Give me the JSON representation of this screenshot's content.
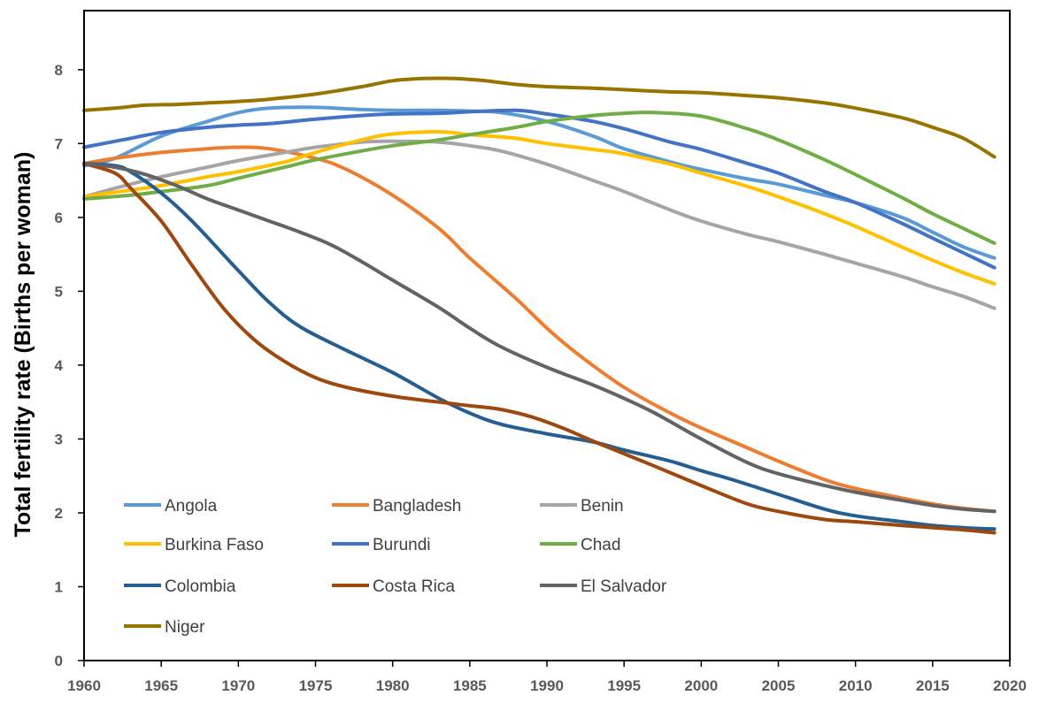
{
  "chart_data": {
    "type": "line",
    "title": "",
    "xlabel": "",
    "ylabel": "Total fertility rate (Births per woman)",
    "xlim": [
      1960,
      2020
    ],
    "ylim": [
      0,
      8.8
    ],
    "x_ticks": [
      1960,
      1965,
      1970,
      1975,
      1980,
      1985,
      1990,
      1995,
      2000,
      2005,
      2010,
      2015,
      2020
    ],
    "y_ticks": [
      0,
      1,
      2,
      3,
      4,
      5,
      6,
      7,
      8
    ],
    "grid": false,
    "legend": "bottom-left, inside plot, 3 columns",
    "series": [
      {
        "name": "Angola",
        "color": "#5B9BD5",
        "x": [
          1960,
          1962,
          1965,
          1968,
          1970,
          1972,
          1975,
          1978,
          1980,
          1983,
          1985,
          1987,
          1990,
          1993,
          1995,
          1998,
          2000,
          2003,
          2005,
          2008,
          2010,
          2013,
          2015,
          2017,
          2019
        ],
        "y": [
          6.7,
          6.8,
          7.1,
          7.3,
          7.42,
          7.48,
          7.49,
          7.46,
          7.45,
          7.45,
          7.44,
          7.42,
          7.3,
          7.1,
          6.93,
          6.75,
          6.65,
          6.52,
          6.45,
          6.3,
          6.2,
          6.0,
          5.8,
          5.6,
          5.45
        ]
      },
      {
        "name": "Bangladesh",
        "color": "#ED7D31",
        "x": [
          1960,
          1962,
          1965,
          1968,
          1970,
          1972,
          1975,
          1977,
          1980,
          1983,
          1985,
          1988,
          1990,
          1992,
          1995,
          1998,
          2000,
          2003,
          2005,
          2008,
          2010,
          2013,
          2015,
          2017,
          2019
        ],
        "y": [
          6.73,
          6.8,
          6.88,
          6.93,
          6.95,
          6.93,
          6.8,
          6.65,
          6.3,
          5.85,
          5.45,
          4.9,
          4.5,
          4.15,
          3.7,
          3.35,
          3.15,
          2.88,
          2.7,
          2.45,
          2.33,
          2.2,
          2.12,
          2.06,
          2.02
        ]
      },
      {
        "name": "Benin",
        "color": "#A5A5A5",
        "x": [
          1960,
          1963,
          1965,
          1968,
          1970,
          1973,
          1975,
          1978,
          1980,
          1983,
          1985,
          1987,
          1990,
          1993,
          1995,
          1998,
          2000,
          2003,
          2005,
          2008,
          2010,
          2013,
          2015,
          2017,
          2019
        ],
        "y": [
          6.28,
          6.45,
          6.55,
          6.68,
          6.77,
          6.88,
          6.95,
          7.02,
          7.03,
          7.02,
          6.97,
          6.9,
          6.72,
          6.5,
          6.35,
          6.1,
          5.95,
          5.77,
          5.67,
          5.5,
          5.38,
          5.2,
          5.06,
          4.93,
          4.77
        ]
      },
      {
        "name": "Burkina Faso",
        "color": "#FFC000",
        "x": [
          1960,
          1963,
          1965,
          1968,
          1970,
          1973,
          1975,
          1978,
          1980,
          1983,
          1985,
          1988,
          1990,
          1993,
          1995,
          1998,
          2000,
          2003,
          2005,
          2008,
          2010,
          2013,
          2015,
          2017,
          2019
        ],
        "y": [
          6.28,
          6.37,
          6.43,
          6.55,
          6.62,
          6.75,
          6.88,
          7.05,
          7.13,
          7.16,
          7.12,
          7.07,
          7.0,
          6.92,
          6.86,
          6.72,
          6.6,
          6.42,
          6.28,
          6.05,
          5.88,
          5.6,
          5.42,
          5.25,
          5.1
        ]
      },
      {
        "name": "Burundi",
        "color": "#4472C4",
        "x": [
          1960,
          1963,
          1965,
          1968,
          1970,
          1972,
          1975,
          1978,
          1980,
          1983,
          1985,
          1988,
          1990,
          1993,
          1995,
          1998,
          2000,
          2003,
          2005,
          2008,
          2010,
          2013,
          2015,
          2017,
          2019
        ],
        "y": [
          6.95,
          7.07,
          7.15,
          7.22,
          7.25,
          7.27,
          7.33,
          7.38,
          7.4,
          7.41,
          7.43,
          7.45,
          7.4,
          7.3,
          7.2,
          7.02,
          6.92,
          6.73,
          6.6,
          6.35,
          6.2,
          5.92,
          5.72,
          5.52,
          5.32
        ]
      },
      {
        "name": "Chad",
        "color": "#70AD47",
        "x": [
          1960,
          1963,
          1965,
          1968,
          1970,
          1973,
          1975,
          1978,
          1980,
          1983,
          1985,
          1988,
          1990,
          1993,
          1995,
          1997,
          2000,
          2003,
          2005,
          2008,
          2010,
          2013,
          2015,
          2017,
          2019
        ],
        "y": [
          6.25,
          6.3,
          6.35,
          6.43,
          6.53,
          6.68,
          6.78,
          6.9,
          6.97,
          7.05,
          7.12,
          7.22,
          7.3,
          7.38,
          7.41,
          7.42,
          7.37,
          7.2,
          7.05,
          6.78,
          6.58,
          6.27,
          6.05,
          5.85,
          5.65
        ]
      },
      {
        "name": "Colombia",
        "color": "#255E91",
        "x": [
          1960,
          1962,
          1963,
          1965,
          1967,
          1970,
          1972,
          1974,
          1977,
          1980,
          1983,
          1985,
          1987,
          1990,
          1993,
          1995,
          1998,
          2000,
          2002,
          2005,
          2008,
          2010,
          2013,
          2015,
          2017,
          2019
        ],
        "y": [
          6.73,
          6.7,
          6.62,
          6.33,
          5.95,
          5.28,
          4.85,
          4.52,
          4.2,
          3.9,
          3.55,
          3.35,
          3.2,
          3.07,
          2.96,
          2.85,
          2.7,
          2.57,
          2.45,
          2.25,
          2.05,
          1.96,
          1.88,
          1.83,
          1.8,
          1.78
        ]
      },
      {
        "name": "Costa Rica",
        "color": "#9E480E",
        "x": [
          1960,
          1962,
          1963,
          1965,
          1967,
          1969,
          1971,
          1973,
          1975,
          1977,
          1980,
          1983,
          1985,
          1987,
          1989,
          1991,
          1993,
          1995,
          1997,
          2000,
          2003,
          2005,
          2008,
          2010,
          2013,
          2015,
          2017,
          2019
        ],
        "y": [
          6.73,
          6.6,
          6.4,
          5.95,
          5.35,
          4.78,
          4.35,
          4.05,
          3.83,
          3.7,
          3.58,
          3.5,
          3.45,
          3.4,
          3.3,
          3.15,
          2.97,
          2.8,
          2.63,
          2.37,
          2.12,
          2.02,
          1.91,
          1.88,
          1.83,
          1.8,
          1.77,
          1.73
        ]
      },
      {
        "name": "El Salvador",
        "color": "#636363",
        "x": [
          1960,
          1962,
          1964,
          1966,
          1968,
          1970,
          1972,
          1974,
          1976,
          1978,
          1980,
          1983,
          1985,
          1987,
          1990,
          1993,
          1995,
          1997,
          2000,
          2003,
          2005,
          2008,
          2010,
          2013,
          2015,
          2017,
          2019
        ],
        "y": [
          6.73,
          6.68,
          6.58,
          6.43,
          6.25,
          6.1,
          5.95,
          5.8,
          5.63,
          5.4,
          5.15,
          4.78,
          4.5,
          4.25,
          3.97,
          3.73,
          3.55,
          3.35,
          3.0,
          2.68,
          2.53,
          2.37,
          2.28,
          2.17,
          2.1,
          2.05,
          2.02
        ]
      },
      {
        "name": "Niger",
        "color": "#997300",
        "x": [
          1960,
          1962,
          1964,
          1966,
          1968,
          1970,
          1972,
          1975,
          1978,
          1980,
          1982,
          1984,
          1986,
          1988,
          1990,
          1993,
          1995,
          1998,
          2000,
          2003,
          2005,
          2008,
          2010,
          2013,
          2015,
          2017,
          2019
        ],
        "y": [
          7.45,
          7.48,
          7.52,
          7.53,
          7.55,
          7.57,
          7.6,
          7.67,
          7.77,
          7.85,
          7.88,
          7.88,
          7.85,
          7.8,
          7.77,
          7.75,
          7.73,
          7.7,
          7.69,
          7.65,
          7.62,
          7.55,
          7.48,
          7.35,
          7.22,
          7.07,
          6.82
        ]
      }
    ]
  }
}
